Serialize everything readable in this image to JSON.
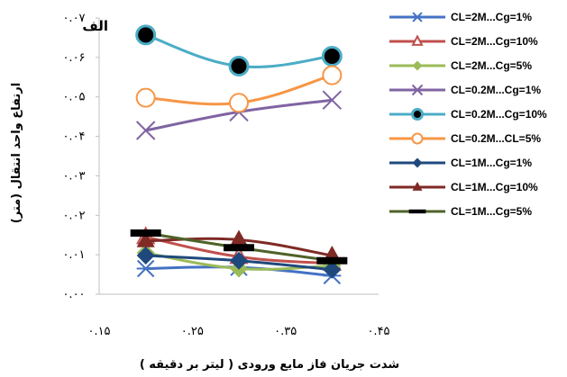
{
  "chart_data": {
    "type": "line",
    "panel_label": "الف",
    "xlabel": "شدت جریان فاز مایع ورودی ( لیتر بر دقیقه )",
    "ylabel": "ارتفاع واحد انتقال (متر)",
    "xlim": [
      0.15,
      0.45
    ],
    "ylim": [
      0.0,
      0.07
    ],
    "x_ticks": [
      {
        "value": 0.15,
        "label": "۰.۱۵"
      },
      {
        "value": 0.25,
        "label": "۰.۲۵"
      },
      {
        "value": 0.35,
        "label": "۰.۳۵"
      },
      {
        "value": 0.45,
        "label": "۰.۴۵"
      }
    ],
    "y_ticks": [
      {
        "value": 0.0,
        "label": "۰.۰۰"
      },
      {
        "value": 0.01,
        "label": "۰.۰۱"
      },
      {
        "value": 0.02,
        "label": "۰.۰۲"
      },
      {
        "value": 0.03,
        "label": "۰.۰۳"
      },
      {
        "value": 0.04,
        "label": "۰.۰۴"
      },
      {
        "value": 0.05,
        "label": "۰.۰۵"
      },
      {
        "value": 0.06,
        "label": "۰.۰۶"
      },
      {
        "value": 0.07,
        "label": "۰.۰۷"
      }
    ],
    "x": [
      0.2,
      0.3,
      0.4
    ],
    "grid": false,
    "legend_position": "right",
    "series": [
      {
        "name": "CL=2M...Cg=1%",
        "values": [
          0.0065,
          0.0068,
          0.0047
        ],
        "color": "#4472C4",
        "marker": "asterisk"
      },
      {
        "name": "CL=2M...Cg=10%",
        "values": [
          0.0145,
          0.0095,
          0.0078
        ],
        "color": "#C0504D",
        "marker": "triangle-open"
      },
      {
        "name": "CL=2M...Cg=5%",
        "values": [
          0.0105,
          0.0065,
          0.0072
        ],
        "color": "#9BBB59",
        "marker": "diamond"
      },
      {
        "name": "CL=0.2M...Cg=1%",
        "values": [
          0.0415,
          0.0462,
          0.0492
        ],
        "color": "#8064A2",
        "marker": "x"
      },
      {
        "name": "CL=0.2M...Cg=10%",
        "values": [
          0.0657,
          0.0578,
          0.0603
        ],
        "color": "#4BACC6",
        "marker": "circle-dark"
      },
      {
        "name": "CL=0.2M...CL=5%",
        "values": [
          0.0498,
          0.0485,
          0.0555
        ],
        "color": "#F79646",
        "marker": "circle-open"
      },
      {
        "name": "CL=1M...Cg=1%",
        "values": [
          0.0098,
          0.0085,
          0.0062
        ],
        "color": "#1F497D",
        "marker": "diamond"
      },
      {
        "name": "CL=1M...Cg=10%",
        "values": [
          0.0135,
          0.0138,
          0.0098
        ],
        "color": "#7F2A25",
        "marker": "triangle"
      },
      {
        "name": "CL=1M...Cg=5%",
        "values": [
          0.0155,
          0.0118,
          0.0085
        ],
        "color": "#4F6228",
        "marker": "dash"
      }
    ]
  }
}
